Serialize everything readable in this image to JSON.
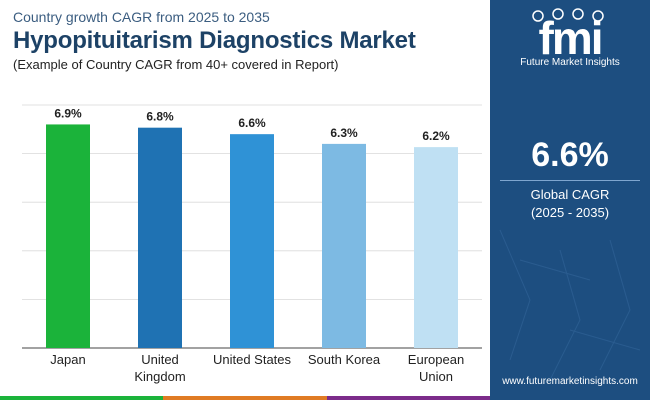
{
  "header": {
    "subtitle": "Country growth CAGR from 2025 to 2035",
    "title": "Hypopituitarism Diagnostics Market",
    "note": "(Example of Country CAGR from 40+ covered in Report)"
  },
  "chart_data": {
    "type": "bar",
    "categories": [
      "Japan",
      "United Kingdom",
      "United States",
      "South Korea",
      "European Union"
    ],
    "values": [
      6.9,
      6.8,
      6.6,
      6.3,
      6.2
    ],
    "value_labels": [
      "6.9%",
      "6.8%",
      "6.6%",
      "6.3%",
      "6.2%"
    ],
    "colors": [
      "#1bb33a",
      "#1f72b3",
      "#2f92d6",
      "#7dbae3",
      "#bfe0f3"
    ],
    "ylim": [
      0,
      7.5
    ],
    "grid": true
  },
  "sidebar": {
    "logo_text": "Future Market Insights",
    "global_value": "6.6%",
    "global_label": "Global CAGR",
    "global_period": "(2025 - 2035)",
    "url": "www.futuremarketinsights.com"
  },
  "colors": {
    "sidebar_bg": "#1d4e80",
    "bottom_bar": [
      "#1bb33a",
      "#e07b24",
      "#7c2c8a"
    ]
  }
}
